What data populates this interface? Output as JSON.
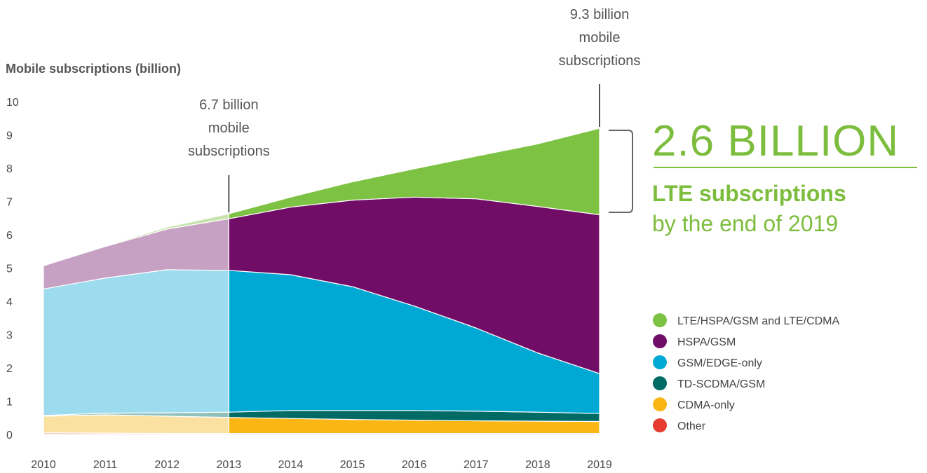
{
  "chart_data": {
    "type": "area",
    "stacked": true,
    "ylabel": "Mobile subscriptions (billion)",
    "ylim": [
      0,
      10
    ],
    "yticks": [
      0,
      1,
      2,
      3,
      4,
      5,
      6,
      7,
      8,
      9,
      10
    ],
    "x": [
      2010,
      2011,
      2012,
      2013,
      2014,
      2015,
      2016,
      2017,
      2018,
      2019
    ],
    "history_until": 2013,
    "series": [
      {
        "name": "Other",
        "color": "#e63b2e",
        "light_color": "#f3b0a8",
        "values": [
          0.05,
          0.04,
          0.03,
          0.03,
          0.03,
          0.03,
          0.03,
          0.03,
          0.03,
          0.03
        ]
      },
      {
        "name": "CDMA-only",
        "color": "#f9b615",
        "light_color": "#fae1a2",
        "values": [
          0.5,
          0.55,
          0.52,
          0.48,
          0.45,
          0.42,
          0.4,
          0.38,
          0.37,
          0.36
        ]
      },
      {
        "name": "TD-SCDMA/GSM",
        "color": "#006a64",
        "light_color": "#8fc0bc",
        "values": [
          0.02,
          0.05,
          0.1,
          0.16,
          0.24,
          0.27,
          0.29,
          0.29,
          0.27,
          0.24
        ]
      },
      {
        "name": "GSM/EDGE-only",
        "color": "#00a9d4",
        "light_color": "#9ddcee",
        "values": [
          3.8,
          4.06,
          4.3,
          4.26,
          4.08,
          3.72,
          3.14,
          2.5,
          1.78,
          1.2
        ]
      },
      {
        "name": "HSPA/GSM",
        "color": "#720d67",
        "light_color": "#c6a1c4",
        "values": [
          0.7,
          0.95,
          1.22,
          1.55,
          2.03,
          2.6,
          3.27,
          3.88,
          4.4,
          4.77
        ]
      },
      {
        "name": "LTE/HSPA/GSM and LTE/CDMA",
        "color": "#7dc242",
        "light_color": "#c8e3ae",
        "values": [
          0.0,
          0.02,
          0.06,
          0.15,
          0.3,
          0.55,
          0.85,
          1.28,
          1.88,
          2.6
        ]
      }
    ],
    "legend": {
      "position": "right",
      "entries": [
        "LTE/HSPA/GSM and LTE/CDMA",
        "HSPA/GSM",
        "GSM/EDGE-only",
        "TD-SCDMA/GSM",
        "CDMA-only",
        "Other"
      ]
    },
    "annotations": {
      "callout_2013": {
        "x": 2013,
        "value": 6.7,
        "lines": [
          "6.7 billion",
          "mobile",
          "subscriptions"
        ]
      },
      "callout_2019": {
        "x": 2019,
        "value": 9.3,
        "lines": [
          "9.3 billion",
          "mobile",
          "subscriptions"
        ]
      },
      "highlight": {
        "number": "2.6 BILLION",
        "line1": "LTE subscriptions",
        "line2": "by the end of 2019"
      }
    }
  }
}
